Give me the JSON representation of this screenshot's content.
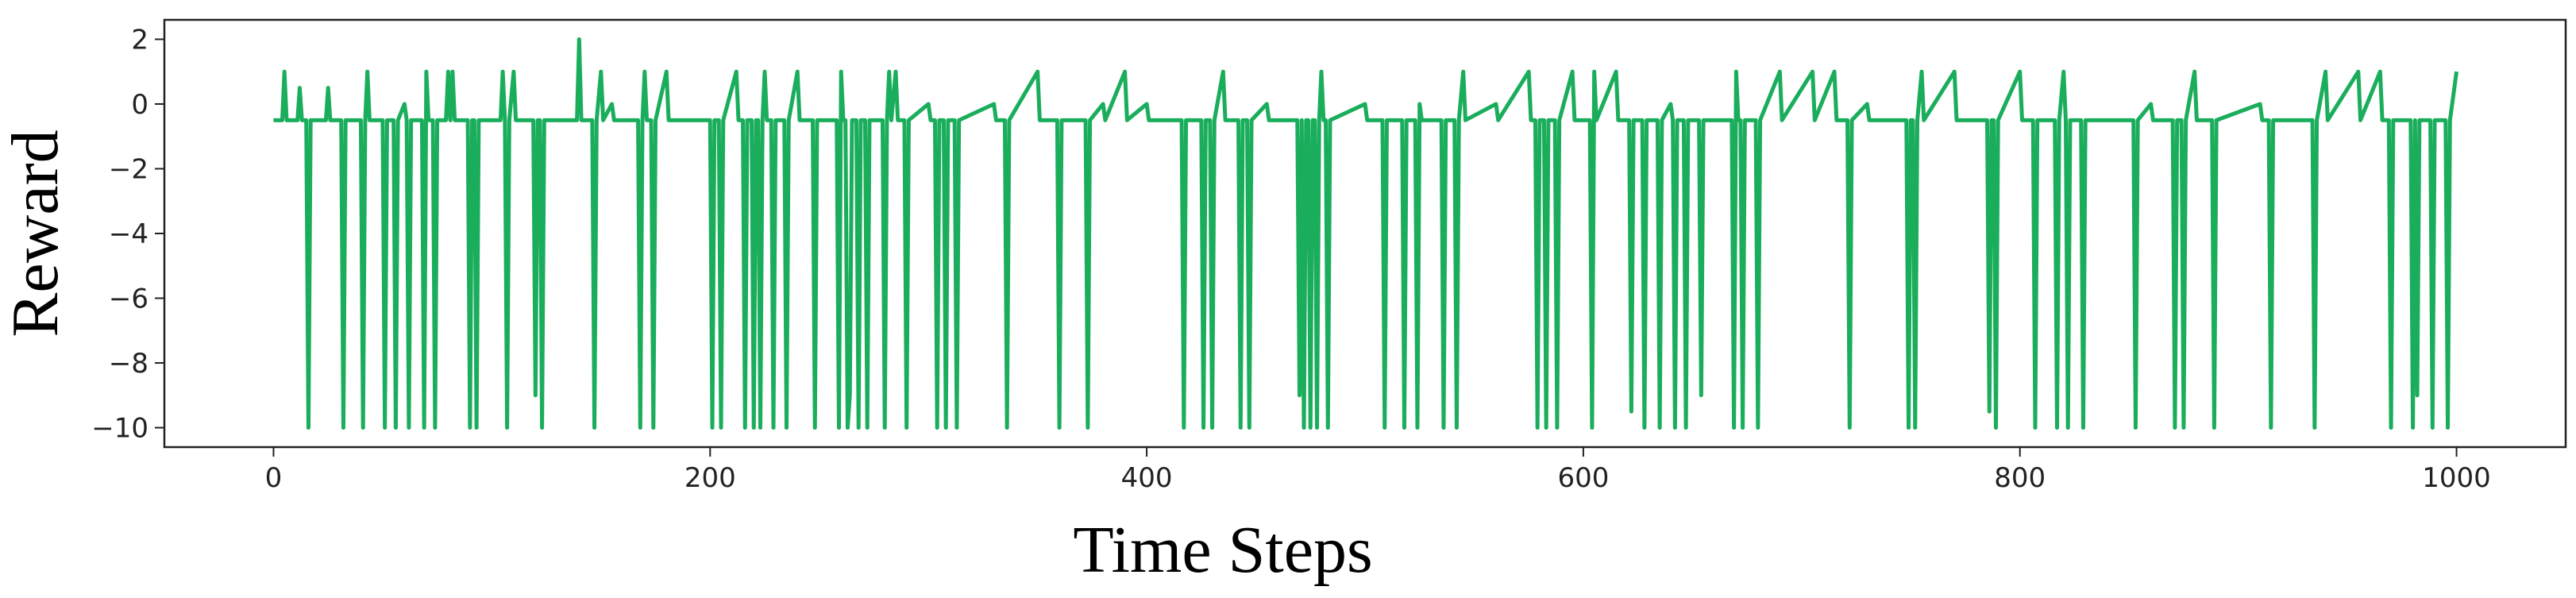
{
  "chart_data": {
    "type": "line",
    "x_label": "Time Steps",
    "y_label": "Reward",
    "color": "#1aad5c",
    "xlim": [
      -50,
      1050
    ],
    "ylim": [
      -10.6,
      2.6
    ],
    "xticks": [
      0,
      200,
      400,
      600,
      800,
      1000
    ],
    "yticks": [
      {
        "value": -10,
        "label": "−10"
      },
      {
        "value": -8,
        "label": "−8"
      },
      {
        "value": -6,
        "label": "−6"
      },
      {
        "value": -4,
        "label": "−4"
      },
      {
        "value": -2,
        "label": "−2"
      },
      0,
      2
    ],
    "x": [
      0,
      4,
      5,
      6,
      11,
      12,
      13,
      15,
      16,
      17,
      24,
      25,
      26,
      31,
      32,
      33,
      40,
      41,
      42,
      43,
      44,
      50,
      51,
      52,
      55,
      56,
      57,
      60,
      61,
      62,
      63,
      68,
      69,
      70,
      71,
      73,
      74,
      75,
      79,
      80,
      81,
      82,
      83,
      89,
      90,
      91,
      92,
      93,
      94,
      104,
      105,
      106,
      107,
      108,
      110,
      111,
      119,
      120,
      121,
      122,
      123,
      124,
      139,
      140,
      141,
      146,
      147,
      148,
      150,
      151,
      155,
      156,
      167,
      168,
      169,
      170,
      171,
      173,
      174,
      175,
      180,
      181,
      200,
      201,
      202,
      204,
      205,
      206,
      212,
      213,
      215,
      216,
      217,
      219,
      220,
      221,
      222,
      223,
      224,
      225,
      226,
      228,
      229,
      230,
      234,
      235,
      236,
      240,
      241,
      247,
      248,
      249,
      258,
      259,
      260,
      261,
      262,
      263,
      264,
      265,
      267,
      268,
      269,
      271,
      272,
      273,
      279,
      280,
      281,
      282,
      283,
      285,
      286,
      289,
      290,
      291,
      300,
      301,
      303,
      304,
      305,
      307,
      308,
      309,
      312,
      313,
      314,
      330,
      331,
      335,
      336,
      337,
      350,
      351,
      359,
      360,
      361,
      372,
      373,
      374,
      380,
      381,
      390,
      391,
      400,
      401,
      416,
      417,
      418,
      425,
      426,
      427,
      429,
      430,
      431,
      435,
      436,
      442,
      443,
      444,
      446,
      447,
      448,
      455,
      456,
      469,
      470,
      471,
      472,
      473,
      474,
      475,
      476,
      477,
      478,
      479,
      480,
      481,
      482,
      483,
      484,
      500,
      501,
      508,
      509,
      510,
      517,
      518,
      519,
      523,
      524,
      525,
      526,
      535,
      536,
      537,
      541,
      542,
      543,
      545,
      546,
      560,
      561,
      575,
      576,
      578,
      579,
      580,
      582,
      583,
      584,
      587,
      588,
      589,
      595,
      596,
      603,
      604,
      605,
      606,
      615,
      616,
      621,
      622,
      623,
      627,
      628,
      629,
      634,
      635,
      636,
      640,
      641,
      642,
      643,
      646,
      647,
      648,
      653,
      654,
      655,
      668,
      669,
      670,
      671,
      672,
      673,
      674,
      679,
      680,
      681,
      690,
      691,
      705,
      706,
      715,
      716,
      721,
      722,
      723,
      730,
      731,
      748,
      749,
      750,
      751,
      752,
      753,
      755,
      756,
      770,
      771,
      785,
      786,
      787,
      788,
      789,
      790,
      800,
      801,
      806,
      807,
      808,
      816,
      817,
      818,
      820,
      821,
      822,
      823,
      828,
      829,
      830,
      852,
      853,
      854,
      860,
      861,
      870,
      871,
      872,
      874,
      875,
      876,
      880,
      881,
      888,
      889,
      890,
      910,
      911,
      914,
      915,
      916,
      934,
      935,
      936,
      940,
      941,
      955,
      956,
      965,
      966,
      969,
      970,
      971,
      979,
      980,
      981,
      982,
      983,
      988,
      989,
      990,
      995,
      996,
      997,
      1000
    ],
    "values": [
      -0.5,
      -0.5,
      1,
      -0.5,
      -0.5,
      0.5,
      -0.5,
      -0.5,
      -10,
      -0.5,
      -0.5,
      0.5,
      -0.5,
      -0.5,
      -10,
      -0.5,
      -0.5,
      -10,
      -0.5,
      1,
      -0.5,
      -0.5,
      -10,
      -0.5,
      -0.5,
      -10,
      -0.5,
      0,
      -0.5,
      -10,
      -0.5,
      -0.5,
      -10,
      1,
      -0.5,
      -0.5,
      -10,
      -0.5,
      -0.5,
      1,
      -0.5,
      1,
      -0.5,
      -0.5,
      -10,
      -0.5,
      -0.5,
      -10,
      -0.5,
      -0.5,
      1,
      -0.5,
      -10,
      -0.5,
      1,
      -0.5,
      -0.5,
      -9,
      -0.5,
      -0.5,
      -10,
      -0.5,
      -0.5,
      2,
      -0.5,
      -0.5,
      -10,
      -0.5,
      1,
      -0.5,
      0,
      -0.5,
      -0.5,
      -10,
      -0.5,
      1,
      -0.5,
      -0.5,
      -10,
      -0.5,
      1,
      -0.5,
      -0.5,
      -10,
      -0.5,
      -0.5,
      -10,
      -0.5,
      1,
      -0.5,
      -0.5,
      -10,
      -0.5,
      -0.5,
      -10,
      -0.5,
      -0.5,
      -10,
      -0.5,
      1,
      -0.5,
      -0.5,
      -10,
      -0.5,
      -0.5,
      -10,
      -0.5,
      1,
      -0.5,
      -0.5,
      -10,
      -0.5,
      -0.5,
      -10,
      1,
      -0.5,
      -0.5,
      -10,
      -9,
      -0.5,
      -0.5,
      -10,
      -0.5,
      -0.5,
      -10,
      -0.5,
      -0.5,
      -10,
      -0.5,
      1,
      -0.5,
      1,
      -0.5,
      -0.5,
      -10,
      -0.5,
      0,
      -0.5,
      -0.5,
      -10,
      -0.5,
      -0.5,
      -10,
      -0.5,
      -0.5,
      -10,
      -0.5,
      0,
      -0.5,
      -0.5,
      -10,
      -0.5,
      1,
      -0.5,
      -0.5,
      -10,
      -0.5,
      -0.5,
      -10,
      -0.5,
      0,
      -0.5,
      1,
      -0.5,
      0,
      -0.5,
      -0.5,
      -10,
      -0.5,
      -0.5,
      -10,
      -0.5,
      -0.5,
      -10,
      -0.5,
      1,
      -0.5,
      -0.5,
      -10,
      -0.5,
      -0.5,
      -10,
      -0.5,
      0,
      -0.5,
      -0.5,
      -9,
      -0.5,
      -10,
      -0.5,
      -0.5,
      -10,
      -0.5,
      -0.5,
      -10,
      -0.5,
      1,
      -0.5,
      -0.5,
      -10,
      -0.5,
      0,
      -0.5,
      -0.5,
      -10,
      -0.5,
      -0.5,
      -10,
      -0.5,
      -0.5,
      -10,
      0,
      -0.5,
      -0.5,
      -10,
      -0.5,
      -0.5,
      -10,
      -0.5,
      1,
      -0.5,
      0,
      -0.5,
      1,
      -0.5,
      -0.5,
      -10,
      -0.5,
      -0.5,
      -10,
      -0.5,
      -0.5,
      -10,
      -0.5,
      1,
      -0.5,
      -0.5,
      -10,
      1,
      -0.5,
      1,
      -0.5,
      -0.5,
      -9.5,
      -0.5,
      -0.5,
      -10,
      -0.5,
      -0.5,
      -10,
      -0.5,
      0,
      -0.5,
      -10,
      -0.5,
      -0.5,
      -10,
      -0.5,
      -0.5,
      -9,
      -0.5,
      -0.5,
      -10,
      1,
      -0.5,
      -0.5,
      -10,
      -0.5,
      -0.5,
      -10,
      -0.5,
      1,
      -0.5,
      1,
      -0.5,
      1,
      -0.5,
      -0.5,
      -10,
      -0.5,
      0,
      -0.5,
      -0.5,
      -10,
      -0.5,
      -0.5,
      -10,
      -0.5,
      1,
      -0.5,
      1,
      -0.5,
      -0.5,
      -9.5,
      -0.5,
      -0.5,
      -10,
      -0.5,
      1,
      -0.5,
      -0.5,
      -10,
      -0.5,
      -0.5,
      -10,
      -0.5,
      1,
      -0.5,
      -10,
      -0.5,
      -0.5,
      -10,
      -0.5,
      -0.5,
      -10,
      -0.5,
      0,
      -0.5,
      -0.5,
      -10,
      -0.5,
      -0.5,
      -10,
      -0.5,
      1,
      -0.5,
      -0.5,
      -10,
      -0.5,
      0,
      -0.5,
      -0.5,
      -10,
      -0.5,
      -0.5,
      -10,
      -0.5,
      1,
      -0.5,
      1,
      -0.5,
      1,
      -0.5,
      -0.5,
      -10,
      -0.5,
      -0.5,
      -10,
      -0.5,
      -9,
      -0.5,
      -0.5,
      -10,
      -0.5,
      -0.5,
      -10,
      -0.5,
      1
    ]
  }
}
